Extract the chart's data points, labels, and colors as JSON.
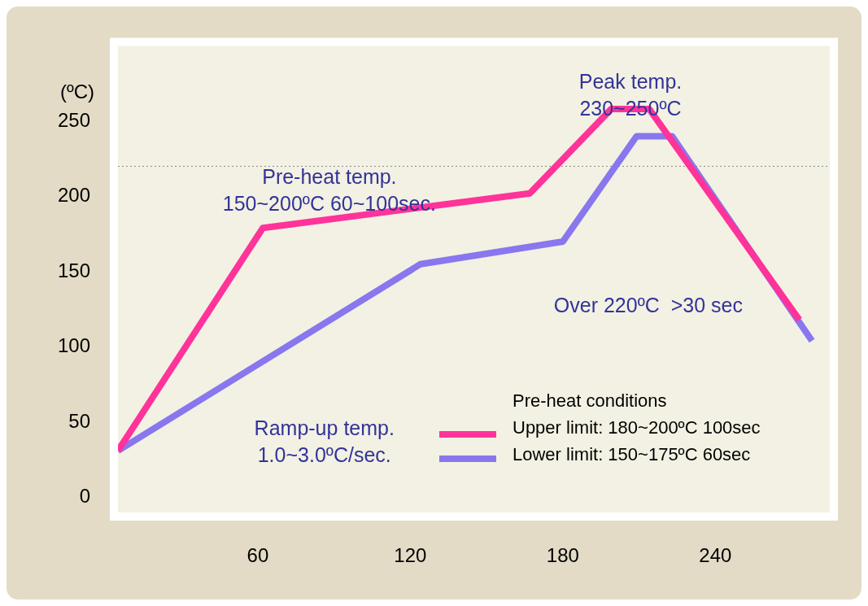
{
  "chart_data": {
    "type": "line",
    "ylabel": "(ºC)",
    "legend_title": "Pre-heat conditions",
    "legend": "bottom right",
    "grid": false,
    "marker": "none",
    "line_style": "solid",
    "xlim": [
      5,
      285
    ],
    "xticks": [
      60,
      120,
      180,
      240
    ],
    "ylim": [
      -10,
      300
    ],
    "yticks": [
      0,
      50,
      100,
      150,
      200,
      250
    ],
    "series": [
      {
        "name": "Upper limit: 180~200ºC 100sec",
        "color": "#ff3399",
        "x": [
          5,
          62,
          167,
          199,
          214,
          273
        ],
        "values": [
          31,
          179,
          202,
          258,
          258,
          118
        ]
      },
      {
        "name": "Lower limit: 150~175ºC 60sec",
        "color": "#8877ee",
        "x": [
          5,
          124,
          180,
          209,
          223,
          278
        ],
        "values": [
          31,
          155,
          170,
          240,
          240,
          104
        ]
      }
    ],
    "ref_lines": [
      {
        "axis": "y",
        "value": 220,
        "color": "#888888",
        "line_style": "dotted"
      }
    ],
    "annotations": [
      "Peak temp.\n230~250ºC",
      "Pre-heat temp.\n150~200ºC 60~100sec.",
      "Over 220ºC  >30 sec",
      "Ramp-up temp.\n1.0~3.0ºC/sec."
    ]
  }
}
